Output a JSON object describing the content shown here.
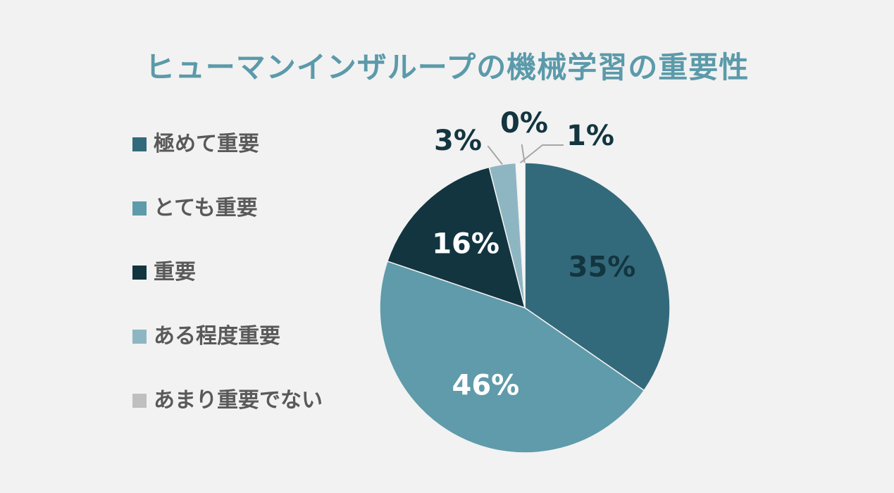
{
  "chart_data": {
    "type": "pie",
    "title": "ヒューマンインザループの機械学習の重要性",
    "categories": [
      "極めて重要",
      "とても重要",
      "重要",
      "ある程度重要",
      "あまり重要でない"
    ],
    "values": [
      35,
      46,
      16,
      3,
      1
    ],
    "data_labels": [
      "35%",
      "46%",
      "16%",
      "3%",
      "1%"
    ],
    "extra_label": "0%",
    "colors": [
      "#336a7b",
      "#5f9baa",
      "#123540",
      "#8eb6c2",
      "#f7f7f7"
    ],
    "legend_colors": [
      "#336a7b",
      "#5f9baa",
      "#123540",
      "#8eb6c2",
      "#bfbfbf"
    ],
    "label_colors": [
      "#133540",
      "#ffffff",
      "#ffffff",
      "#133540",
      "#133540"
    ],
    "legend_position": "left"
  }
}
